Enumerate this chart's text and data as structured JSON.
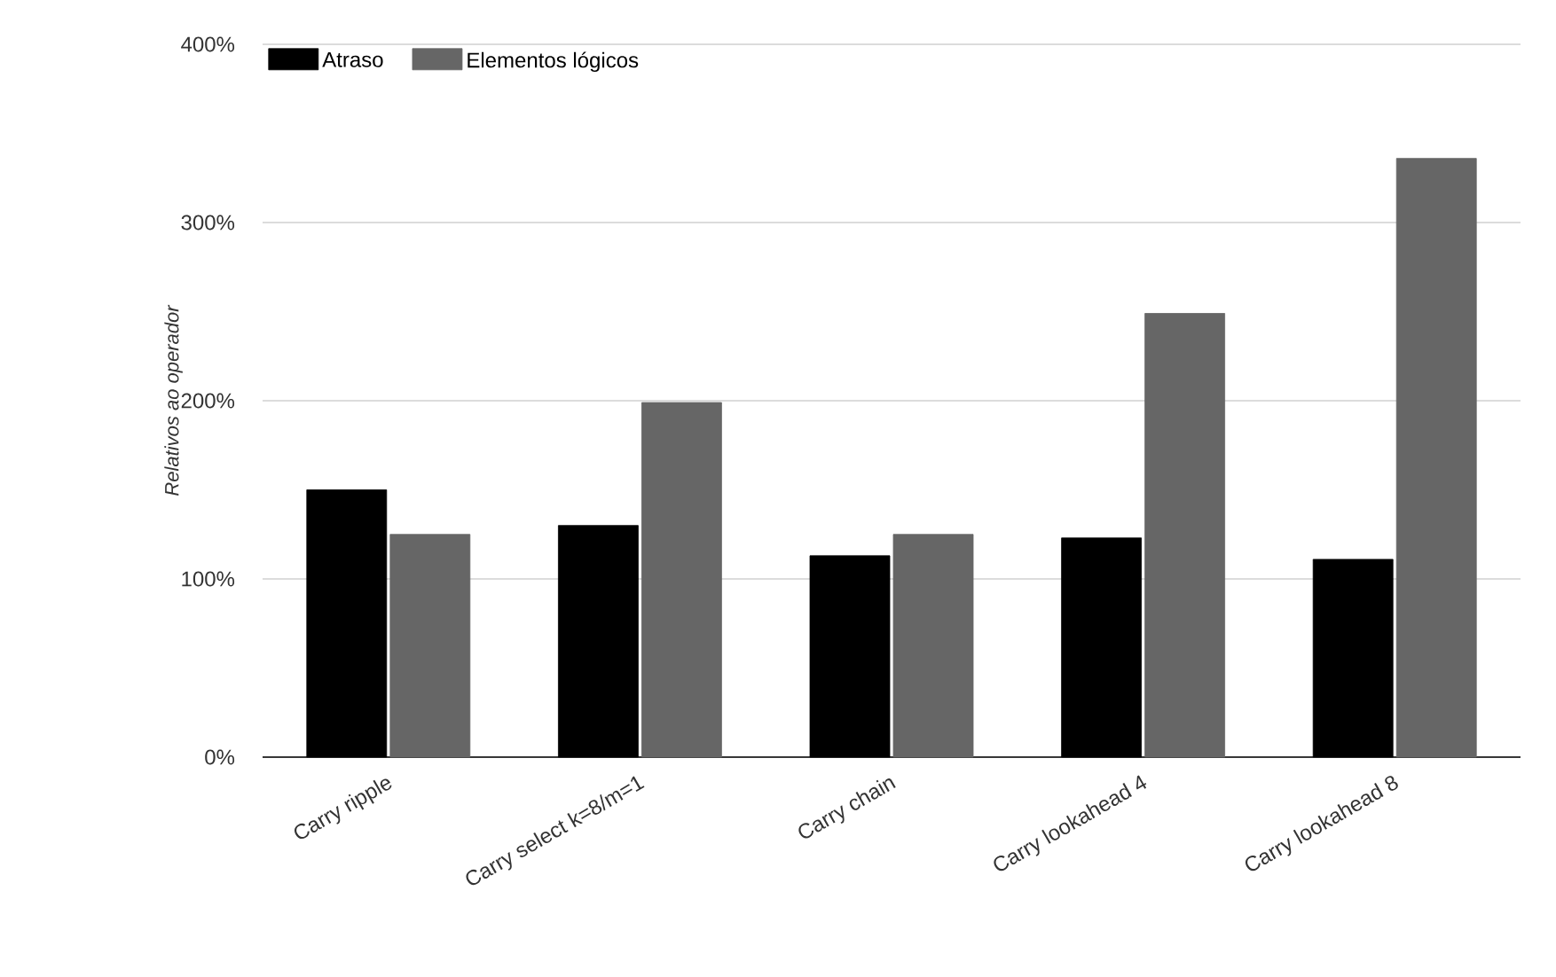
{
  "chart_data": {
    "type": "bar",
    "ylabel": "Relativos ao operador",
    "categories": [
      "Carry ripple",
      "Carry select k=8/m=1",
      "Carry chain",
      "Carry lookahead 4",
      "Carry lookahead 8"
    ],
    "series": [
      {
        "name": "Atraso",
        "color": "#000000",
        "values": [
          150,
          130,
          113,
          123,
          111
        ]
      },
      {
        "name": "Elementos lógicos",
        "color": "#666666",
        "values": [
          125,
          199,
          125,
          249,
          336
        ]
      }
    ],
    "ylim": [
      0,
      400
    ],
    "yticks": [
      {
        "value": 0,
        "label": "0%"
      },
      {
        "value": 100,
        "label": "100%"
      },
      {
        "value": 200,
        "label": "200%"
      },
      {
        "value": 300,
        "label": "300%"
      },
      {
        "value": 400,
        "label": "400%"
      }
    ],
    "grid": "y",
    "legend": "top left"
  }
}
